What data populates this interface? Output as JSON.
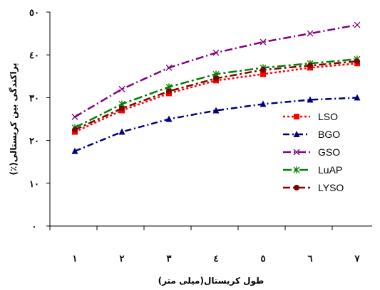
{
  "chart_data": {
    "type": "line",
    "title": "",
    "xlabel": "طول کریستال(میلی متر)",
    "ylabel": "پراکندگی بین کریستالی(٪)",
    "x": [
      1,
      2,
      3,
      4,
      5,
      6,
      7
    ],
    "x_tick_labels": [
      "١",
      "٢",
      "٣",
      "٤",
      "٥",
      "٦",
      "٧"
    ],
    "ylim": [
      0,
      50
    ],
    "y_ticks": [
      0,
      10,
      20,
      30,
      40,
      50
    ],
    "y_tick_labels": [
      "٠",
      "١٠",
      "٢٠",
      "٣٠",
      "٤٠",
      "٥٠"
    ],
    "grid": false,
    "legend_position": "right",
    "series": [
      {
        "name": "LSO",
        "color": "#ff0000",
        "marker": "square",
        "values": [
          22.0,
          27.0,
          31.0,
          34.0,
          35.5,
          37.0,
          38.0
        ]
      },
      {
        "name": "BGO",
        "color": "#000080",
        "marker": "triangle",
        "values": [
          17.5,
          22.0,
          25.0,
          27.0,
          28.5,
          29.5,
          30.0
        ]
      },
      {
        "name": "GSO",
        "color": "#800080",
        "marker": "x",
        "values": [
          25.5,
          32.0,
          37.0,
          40.5,
          43.0,
          45.0,
          47.0
        ]
      },
      {
        "name": "LuAP",
        "color": "#008000",
        "marker": "asterisk",
        "values": [
          23.0,
          28.5,
          32.5,
          35.5,
          37.0,
          38.0,
          39.0
        ]
      },
      {
        "name": "LYSO",
        "color": "#800000",
        "marker": "circle",
        "values": [
          22.5,
          27.5,
          31.5,
          34.5,
          36.5,
          37.5,
          38.5
        ]
      }
    ]
  }
}
